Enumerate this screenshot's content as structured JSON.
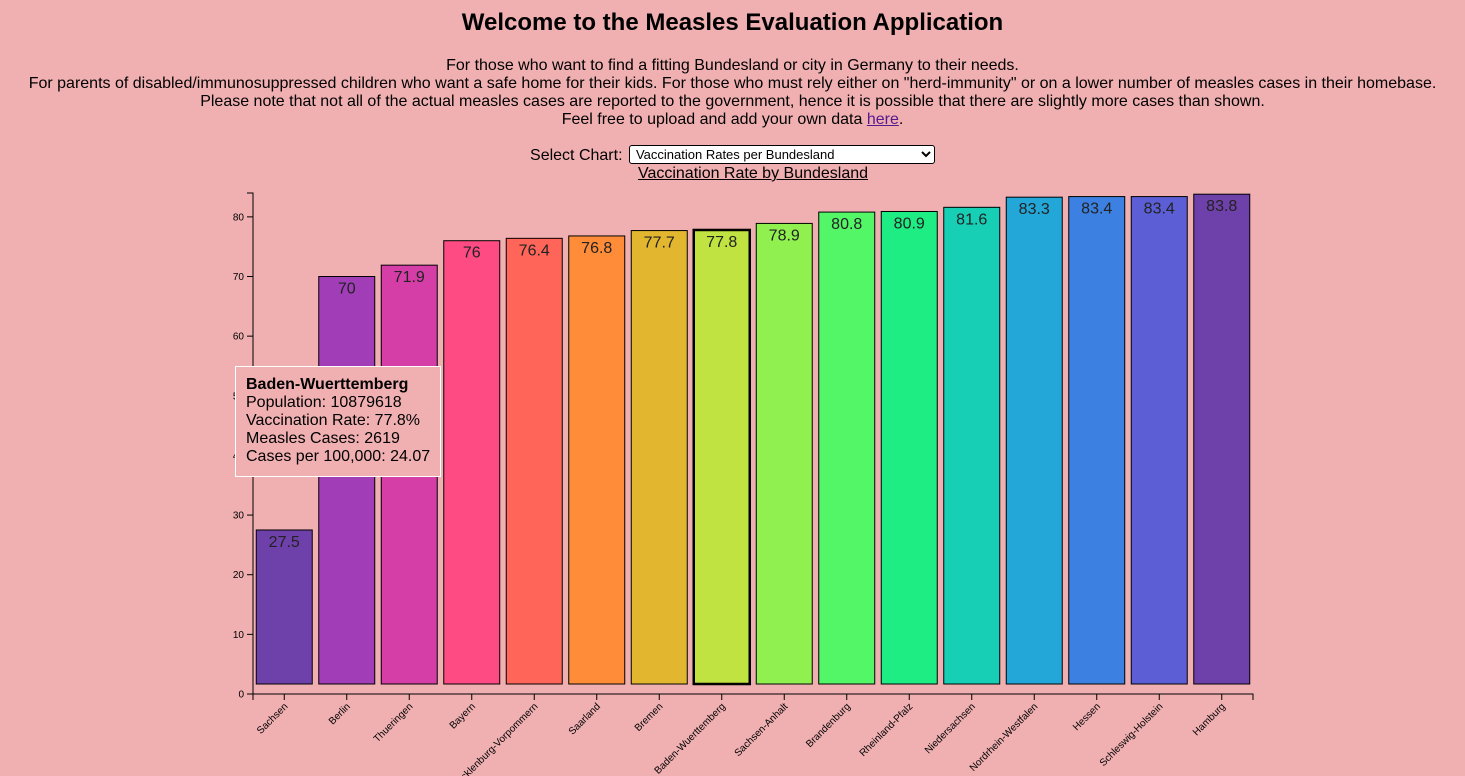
{
  "header": {
    "title": "Welcome to the Measles Evaluation Application",
    "intro_lines": [
      "For those who want to find a fitting Bundesland or city in Germany to their needs.",
      "For parents of disabled/immunosuppressed children who want a safe home for their kids. For those who must rely either on \"herd-immunity\" or on a lower number of measles cases in their homebase.",
      "Please note that not all of the actual measles cases are reported to the government, hence it is possible that there are slightly more cases than shown."
    ],
    "upload_prefix": "Feel free to upload and add your own data ",
    "upload_link": "here",
    "upload_suffix": "."
  },
  "controls": {
    "select_label": "Select Chart:",
    "select_value": "Vaccination Rates per Bundesland"
  },
  "tooltip": {
    "title": "Baden-Wuerttemberg",
    "population": "Population: 10879618",
    "vaccination": "Vaccination Rate: 77.8%",
    "cases": "Measles Cases: 2619",
    "per100k": "Cases per 100,000: 24.07"
  },
  "chart_data": {
    "type": "bar",
    "title": "Vaccination Rate by Bundesland",
    "xlabel": "",
    "ylabel": "",
    "ylim": [
      0,
      84
    ],
    "yticks": [
      0,
      10,
      20,
      30,
      40,
      50,
      60,
      70,
      80
    ],
    "categories": [
      "Sachsen",
      "Berlin",
      "Thueringen",
      "Bayern",
      "Mecklenburg-Vorpommern",
      "Saarland",
      "Bremen",
      "Baden-Wuerttemberg",
      "Sachsen-Anhalt",
      "Brandenburg",
      "Rheinland-Pfalz",
      "Niedersachsen",
      "Nordrhein-Westfalen",
      "Hessen",
      "Schleswig-Holstein",
      "Hamburg"
    ],
    "values": [
      27.5,
      70,
      71.9,
      76,
      76.4,
      76.8,
      77.7,
      77.8,
      78.9,
      80.8,
      80.9,
      81.6,
      83.3,
      83.4,
      83.4,
      83.8
    ],
    "colors": [
      "#6e40aa",
      "#a23db8",
      "#d53ea7",
      "#fe4b83",
      "#ff6559",
      "#ff8c38",
      "#e2b72f",
      "#c0e341",
      "#8ff04f",
      "#52f667",
      "#1ded83",
      "#17cfb5",
      "#22a7d8",
      "#3c81e1",
      "#5b5ed5",
      "#6e40aa"
    ],
    "highlighted": "Baden-Wuerttemberg",
    "grid": false,
    "legend": "none"
  }
}
